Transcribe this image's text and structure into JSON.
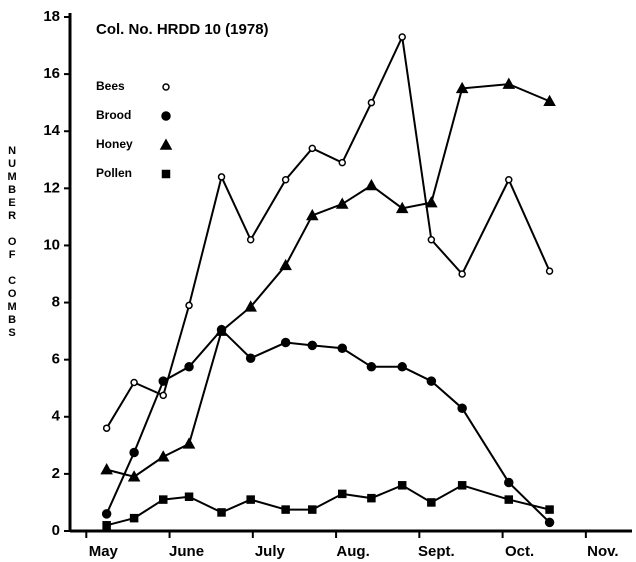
{
  "chart_data": {
    "type": "line",
    "title": "Col. No. HRDD 10 (1978)",
    "y_label": "NUMBER OF COMBS",
    "x": [
      0.04,
      0.37,
      0.72,
      1.03,
      1.42,
      1.77,
      2.19,
      2.51,
      2.87,
      3.22,
      3.59,
      3.94,
      4.31,
      4.87,
      5.36
    ],
    "series": [
      {
        "name": "Bees",
        "color": "#000000",
        "marker": "circle-open",
        "values": [
          3.6,
          5.2,
          4.75,
          7.9,
          12.4,
          10.2,
          12.3,
          13.4,
          12.9,
          15.0,
          17.3,
          10.2,
          9.0,
          12.3,
          9.1
        ]
      },
      {
        "name": "Brood",
        "color": "#000000",
        "marker": "circle-filled",
        "values": [
          0.6,
          2.75,
          5.25,
          5.75,
          7.05,
          6.05,
          6.6,
          6.5,
          6.4,
          5.75,
          5.75,
          5.25,
          4.3,
          1.7,
          0.3
        ]
      },
      {
        "name": "Honey",
        "color": "#000000",
        "marker": "triangle",
        "values": [
          2.15,
          1.9,
          2.6,
          3.05,
          7.0,
          7.85,
          9.3,
          11.05,
          11.45,
          12.1,
          11.3,
          11.5,
          15.5,
          15.65,
          15.05
        ]
      },
      {
        "name": "Pollen",
        "color": "#000000",
        "marker": "square",
        "values": [
          0.2,
          0.45,
          1.1,
          1.2,
          0.65,
          1.1,
          0.75,
          0.75,
          1.3,
          1.15,
          1.6,
          1.0,
          1.6,
          1.1,
          0.75
        ]
      }
    ],
    "xlim": [
      -0.4,
      6.35
    ],
    "xticks": [
      {
        "value": 0,
        "label": "May"
      },
      {
        "value": 1,
        "label": "June"
      },
      {
        "value": 2,
        "label": "July"
      },
      {
        "value": 3,
        "label": "Aug."
      },
      {
        "value": 4,
        "label": "Sept."
      },
      {
        "value": 5,
        "label": "Oct."
      },
      {
        "value": 6,
        "label": "Nov."
      }
    ],
    "ylim": [
      0,
      18
    ],
    "yticks": [
      0,
      2,
      4,
      6,
      8,
      10,
      12,
      14,
      16,
      18
    ],
    "grid": false
  }
}
